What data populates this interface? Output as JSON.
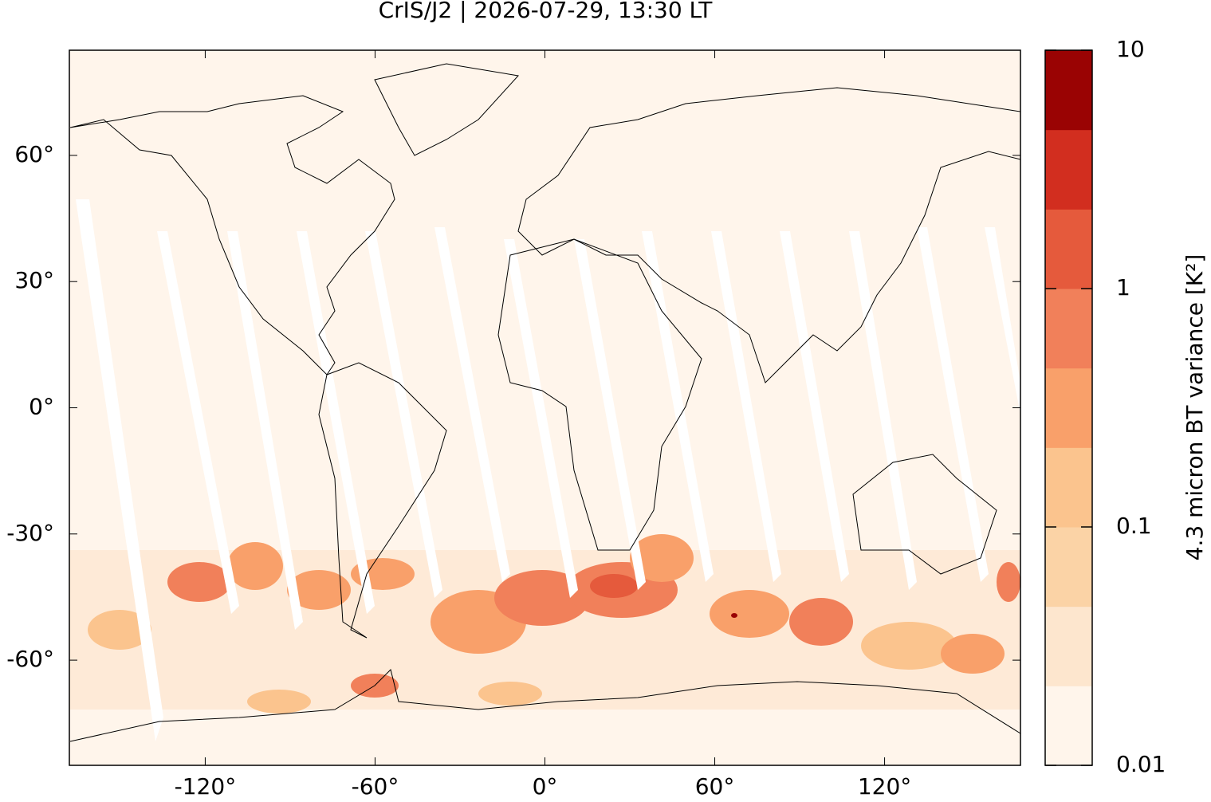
{
  "title": "CrIS/J2 | 2026-07-29, 13:30 LT",
  "map": {
    "lonlim": [
      -168,
      168
    ],
    "latlim": [
      -85,
      85
    ],
    "lonticks": [
      {
        "value": -120,
        "label": "-120°"
      },
      {
        "value": -60,
        "label": "-60°"
      },
      {
        "value": 0,
        "label": "0°"
      },
      {
        "value": 60,
        "label": "60°"
      },
      {
        "value": 120,
        "label": "120°"
      }
    ],
    "latticks": [
      {
        "value": 60,
        "label": "60°"
      },
      {
        "value": 30,
        "label": "30°"
      },
      {
        "value": 0,
        "label": "0°"
      },
      {
        "value": -30,
        "label": "-30°"
      },
      {
        "value": -60,
        "label": "-60°"
      }
    ],
    "background": "#fff5eb"
  },
  "colorbar": {
    "label": "4.3 micron BT variance [K²]",
    "scale": "log",
    "lim": [
      0.01,
      10
    ],
    "ticks": [
      10,
      1,
      0.1,
      0.01
    ],
    "colors": [
      "#fff5eb",
      "#fde6ce",
      "#fbd3a6",
      "#fbc48e",
      "#f9a06a",
      "#f1805a",
      "#e55a3c",
      "#d22e1f",
      "#9a0303"
    ]
  }
}
